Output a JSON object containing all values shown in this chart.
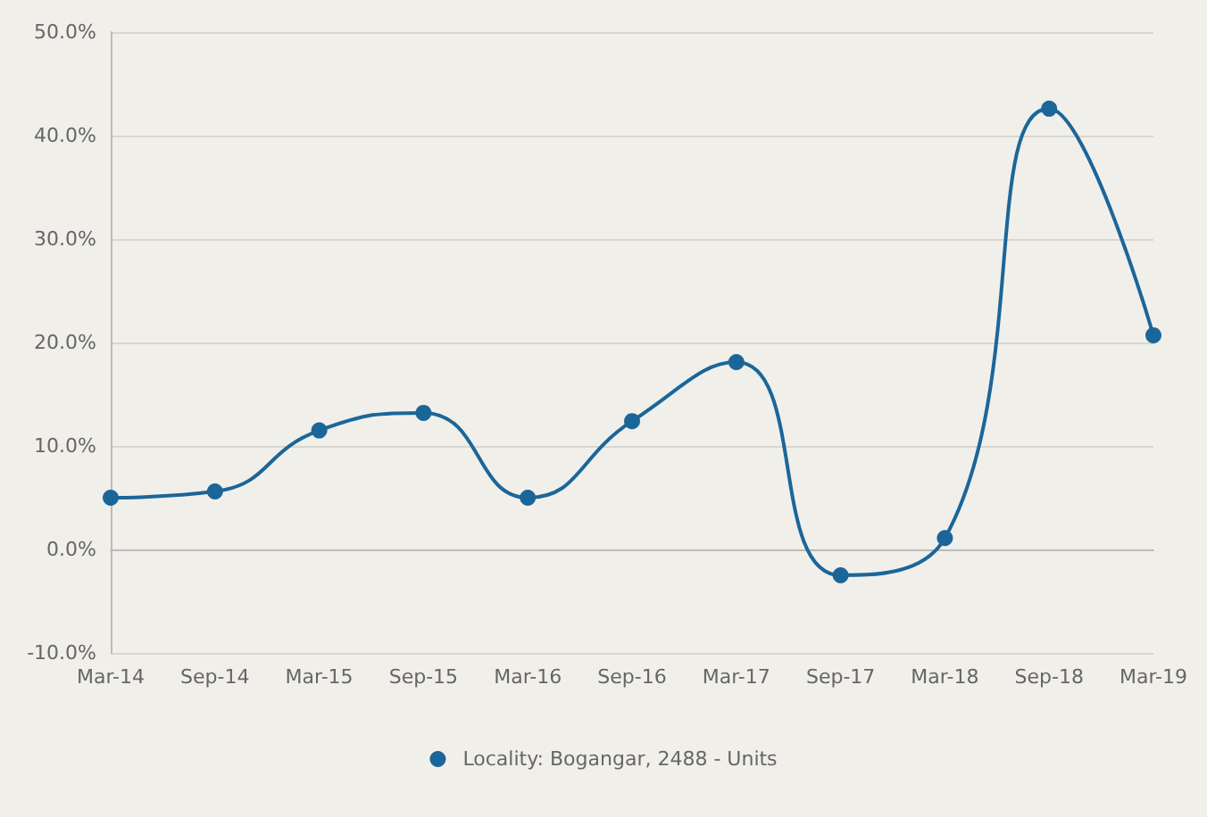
{
  "chart_data": {
    "type": "line",
    "categories": [
      "Mar-14",
      "Sep-14",
      "Mar-15",
      "Sep-15",
      "Mar-16",
      "Sep-16",
      "Mar-17",
      "Sep-17",
      "Mar-18",
      "Sep-18",
      "Mar-19"
    ],
    "series": [
      {
        "name": "Locality: Bogangar, 2488 - Units",
        "color": "#1b6699",
        "values": [
          5.0,
          5.6,
          11.5,
          13.2,
          5.0,
          12.4,
          18.1,
          -2.5,
          1.1,
          42.6,
          20.7
        ]
      }
    ],
    "ylim": [
      -10,
      50
    ],
    "yticks": [
      {
        "value": -10,
        "label": "-10.0%"
      },
      {
        "value": 0,
        "label": "0.0%"
      },
      {
        "value": 10,
        "label": "10.0%"
      },
      {
        "value": 20,
        "label": "20.0%"
      },
      {
        "value": 30,
        "label": "30.0%"
      },
      {
        "value": 40,
        "label": "40.0%"
      },
      {
        "value": 50,
        "label": "50.0%"
      }
    ],
    "grid": "y",
    "legend": "bottom",
    "marker": "circle"
  }
}
